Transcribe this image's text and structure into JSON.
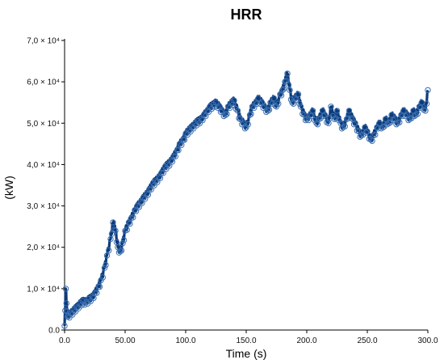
{
  "chart_data": {
    "type": "line",
    "title": "HRR",
    "xlabel": "Time (s)",
    "ylabel": "(kW)",
    "xlim": [
      0,
      300
    ],
    "ylim": [
      0,
      70000
    ],
    "x_ticks": [
      0,
      50,
      100,
      150,
      200,
      250,
      300
    ],
    "x_tick_labels": [
      "0.0",
      "50.00",
      "100.0",
      "150.0",
      "200.0",
      "250.0",
      "300.0"
    ],
    "y_ticks": [
      0,
      10000,
      20000,
      30000,
      40000,
      50000,
      60000,
      70000
    ],
    "y_tick_labels": [
      "0.0",
      "1,0 × 10⁴",
      "2,0 × 10⁴",
      "3,0 × 10⁴",
      "4,0 × 10⁴",
      "5,0 × 10⁴",
      "6,0 × 10⁴",
      "7,0 × 10⁴"
    ],
    "grid": false,
    "series": [
      {
        "color": "#0d3b7a",
        "marker": "open-circle",
        "x": [
          0,
          1,
          2,
          3,
          5,
          8,
          10,
          13,
          15,
          18,
          20,
          23,
          25,
          28,
          30,
          33,
          35,
          38,
          40,
          42,
          44,
          46,
          48,
          50,
          53,
          55,
          58,
          60,
          63,
          65,
          68,
          70,
          73,
          75,
          78,
          80,
          83,
          85,
          88,
          90,
          93,
          95,
          98,
          100,
          103,
          105,
          108,
          110,
          113,
          115,
          118,
          120,
          123,
          125,
          128,
          130,
          133,
          135,
          138,
          140,
          143,
          145,
          148,
          150,
          153,
          155,
          158,
          160,
          163,
          165,
          168,
          170,
          173,
          175,
          178,
          180,
          182,
          184,
          186,
          188,
          190,
          193,
          195,
          198,
          200,
          203,
          205,
          208,
          210,
          213,
          215,
          218,
          220,
          223,
          225,
          228,
          230,
          233,
          235,
          238,
          240,
          243,
          245,
          248,
          250,
          253,
          255,
          258,
          260,
          263,
          265,
          268,
          270,
          273,
          275,
          278,
          280,
          283,
          285,
          288,
          290,
          293,
          295,
          298,
          300
        ],
        "y": [
          1000,
          10000,
          4500,
          3500,
          4000,
          5000,
          5500,
          6500,
          7000,
          6800,
          7500,
          8000,
          9000,
          10500,
          12000,
          15000,
          18000,
          22000,
          26000,
          24000,
          20000,
          19000,
          21000,
          24000,
          26000,
          27000,
          29000,
          30000,
          31000,
          32000,
          33000,
          34000,
          35500,
          36000,
          37000,
          38000,
          39500,
          40000,
          41000,
          42000,
          43500,
          45000,
          46000,
          47500,
          48500,
          49000,
          50000,
          50500,
          51000,
          52000,
          53000,
          54000,
          54500,
          55000,
          54000,
          53000,
          52000,
          54000,
          55000,
          55500,
          53000,
          51000,
          50000,
          49000,
          52000,
          54000,
          55000,
          56000,
          55000,
          54000,
          53000,
          55000,
          56000,
          54000,
          57000,
          58000,
          60000,
          62000,
          58000,
          55000,
          56000,
          57000,
          54000,
          52000,
          51000,
          52000,
          53000,
          50000,
          51000,
          53000,
          52000,
          50000,
          54000,
          51000,
          53000,
          50000,
          49000,
          51000,
          53000,
          51000,
          50000,
          48000,
          47000,
          49000,
          48000,
          46000,
          47000,
          49000,
          50000,
          49000,
          51000,
          50000,
          52000,
          51000,
          50000,
          52000,
          53000,
          52000,
          51000,
          53000,
          52000,
          54000,
          55000,
          53000,
          58000
        ]
      }
    ]
  }
}
